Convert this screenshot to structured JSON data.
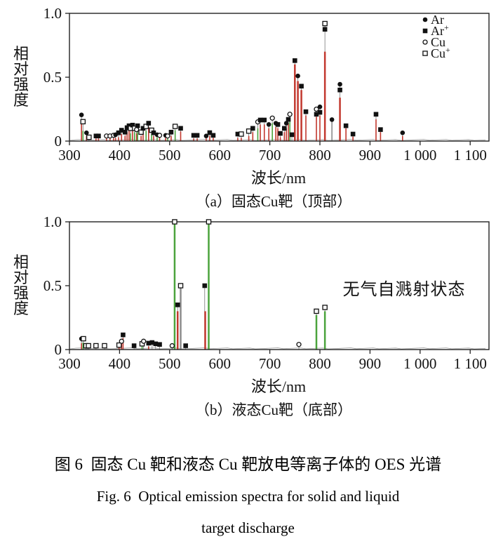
{
  "figure": {
    "caption_zh": "图 6  固态 Cu 靶和液态 Cu 靶放电等离子体的 OES 光谱",
    "caption_en_line1": "Fig. 6  Optical emission spectra for solid and liquid",
    "caption_en_line2": "target discharge"
  },
  "colors": {
    "red": "#c2382e",
    "green": "#4ba33c",
    "gray": "#8c8c8c",
    "axis": "#222222",
    "stem": "#777777",
    "noise": "#9a9a9a"
  },
  "chart_data": [
    {
      "id": "a",
      "type": "line",
      "title": "（a）固态Cu靶（顶部）",
      "xlabel": "波长/nm",
      "ylabel": "相对强度",
      "xlim": [
        300,
        1135
      ],
      "ylim": [
        0,
        1.0
      ],
      "x_ticks": [
        {
          "v": 300,
          "label": "300"
        },
        {
          "v": 400,
          "label": "400"
        },
        {
          "v": 500,
          "label": "500"
        },
        {
          "v": 600,
          "label": "600"
        },
        {
          "v": 700,
          "label": "700"
        },
        {
          "v": 800,
          "label": "800"
        },
        {
          "v": 900,
          "label": "900"
        },
        {
          "v": 1000,
          "label": "1 000"
        },
        {
          "v": 1100,
          "label": "1 100"
        }
      ],
      "y_ticks": [
        {
          "v": 0,
          "label": "0"
        },
        {
          "v": 0.5,
          "label": "0.5"
        },
        {
          "v": 1.0,
          "label": "1.0"
        }
      ],
      "legend": [
        {
          "label": "Ar",
          "sup": "",
          "marker": "filled-circle"
        },
        {
          "label": "Ar",
          "sup": "+",
          "marker": "filled-square"
        },
        {
          "label": "Cu",
          "sup": "",
          "marker": "open-circle"
        },
        {
          "label": "Cu",
          "sup": "+",
          "marker": "open-square"
        }
      ],
      "annotation": "",
      "markers": [
        [
          324,
          0.205,
          "Ar"
        ],
        [
          327,
          0.152,
          "Cu+"
        ],
        [
          334,
          0.065,
          "Ar"
        ],
        [
          339,
          0.03,
          "Cu+"
        ],
        [
          353,
          0.04,
          "Ar+"
        ],
        [
          358,
          0.04,
          "Ar+"
        ],
        [
          374,
          0.04,
          "Cu"
        ],
        [
          381,
          0.04,
          "Cu"
        ],
        [
          388,
          0.045,
          "Cu"
        ],
        [
          392,
          0.05,
          "Ar"
        ],
        [
          398,
          0.065,
          "Ar+"
        ],
        [
          404,
          0.085,
          "Ar+"
        ],
        [
          411,
          0.07,
          "Ar+"
        ],
        [
          415,
          0.105,
          "Ar+"
        ],
        [
          419,
          0.12,
          "Ar+"
        ],
        [
          422,
          0.1,
          "Cu+"
        ],
        [
          426,
          0.125,
          "Ar+"
        ],
        [
          430,
          0.1,
          "Cu+"
        ],
        [
          434,
          0.09,
          "Cu"
        ],
        [
          436,
          0.12,
          "Ar+"
        ],
        [
          443,
          0.07,
          "Cu+"
        ],
        [
          447,
          0.1,
          "Ar+"
        ],
        [
          453,
          0.115,
          "Cu+"
        ],
        [
          458,
          0.14,
          "Ar+"
        ],
        [
          464,
          0.085,
          "Cu+"
        ],
        [
          468,
          0.065,
          "Ar+"
        ],
        [
          475,
          0.05,
          "Ar"
        ],
        [
          480,
          0.045,
          "Cu"
        ],
        [
          492,
          0.045,
          "Ar"
        ],
        [
          496,
          0.04,
          "Cu"
        ],
        [
          503,
          0.07,
          "Ar+"
        ],
        [
          511,
          0.115,
          "Cu+"
        ],
        [
          522,
          0.1,
          "Ar+"
        ],
        [
          548,
          0.045,
          "Ar+"
        ],
        [
          555,
          0.045,
          "Ar+"
        ],
        [
          573,
          0.04,
          "Ar"
        ],
        [
          580,
          0.066,
          "Ar+"
        ],
        [
          587,
          0.045,
          "Ar+"
        ],
        [
          636,
          0.055,
          "Ar+"
        ],
        [
          643,
          0.055,
          "Cu+"
        ],
        [
          658,
          0.078,
          "Cu+"
        ],
        [
          666,
          0.1,
          "Ar+"
        ],
        [
          676,
          0.15,
          "Cu"
        ],
        [
          681,
          0.165,
          "Ar+"
        ],
        [
          689,
          0.165,
          "Ar+"
        ],
        [
          698,
          0.13,
          "Ar"
        ],
        [
          705,
          0.18,
          "Cu"
        ],
        [
          712,
          0.14,
          "Ar"
        ],
        [
          716,
          0.13,
          "Ar+"
        ],
        [
          721,
          0.06,
          "Ar+"
        ],
        [
          729,
          0.1,
          "Ar+"
        ],
        [
          733,
          0.14,
          "Ar"
        ],
        [
          737,
          0.17,
          "Ar+"
        ],
        [
          740,
          0.21,
          "Cu"
        ],
        [
          744,
          0.05,
          "Ar+"
        ],
        [
          750,
          0.63,
          "Ar+"
        ],
        [
          756,
          0.51,
          "Ar"
        ],
        [
          763,
          0.43,
          "Ar+"
        ],
        [
          772,
          0.23,
          "Ar+"
        ],
        [
          793,
          0.25,
          "Cu"
        ],
        [
          793,
          0.21,
          "Ar+"
        ],
        [
          800,
          0.268,
          "Ar"
        ],
        [
          800,
          0.225,
          "Ar+"
        ],
        [
          810,
          0.92,
          "Cu+"
        ],
        [
          810,
          0.875,
          "Ar+"
        ],
        [
          824,
          0.168,
          "Ar"
        ],
        [
          840,
          0.445,
          "Ar"
        ],
        [
          840,
          0.4,
          "Ar+"
        ],
        [
          852,
          0.12,
          "Ar+"
        ],
        [
          866,
          0.055,
          "Ar+"
        ],
        [
          912,
          0.21,
          "Ar+"
        ],
        [
          921,
          0.09,
          "Ar+"
        ],
        [
          965,
          0.065,
          "Ar"
        ]
      ],
      "peaks": [
        [
          324,
          0.155,
          "red"
        ],
        [
          327,
          0.08,
          "green"
        ],
        [
          334,
          0.04,
          "red"
        ],
        [
          353,
          0.02,
          "red"
        ],
        [
          358,
          0.02,
          "red"
        ],
        [
          374,
          0.02,
          "red"
        ],
        [
          381,
          0.02,
          "red"
        ],
        [
          388,
          0.022,
          "red"
        ],
        [
          392,
          0.025,
          "red"
        ],
        [
          398,
          0.03,
          "red"
        ],
        [
          404,
          0.055,
          "red"
        ],
        [
          411,
          0.04,
          "red"
        ],
        [
          415,
          0.07,
          "red"
        ],
        [
          419,
          0.09,
          "red"
        ],
        [
          422,
          0.06,
          "green"
        ],
        [
          426,
          0.1,
          "red"
        ],
        [
          430,
          0.07,
          "green"
        ],
        [
          434,
          0.06,
          "red"
        ],
        [
          436,
          0.09,
          "green"
        ],
        [
          443,
          0.04,
          "red"
        ],
        [
          447,
          0.07,
          "red"
        ],
        [
          453,
          0.08,
          "green"
        ],
        [
          458,
          0.11,
          "red"
        ],
        [
          464,
          0.055,
          "green"
        ],
        [
          468,
          0.04,
          "red"
        ],
        [
          475,
          0.03,
          "green"
        ],
        [
          480,
          0.025,
          "red"
        ],
        [
          492,
          0.025,
          "red"
        ],
        [
          496,
          0.02,
          "green"
        ],
        [
          503,
          0.04,
          "red"
        ],
        [
          511,
          0.085,
          "green"
        ],
        [
          522,
          0.075,
          "red"
        ],
        [
          548,
          0.02,
          "red"
        ],
        [
          555,
          0.02,
          "red"
        ],
        [
          573,
          0.02,
          "red"
        ],
        [
          580,
          0.04,
          "red"
        ],
        [
          587,
          0.025,
          "red"
        ],
        [
          636,
          0.025,
          "red"
        ],
        [
          643,
          0.025,
          "red"
        ],
        [
          658,
          0.04,
          "red"
        ],
        [
          666,
          0.07,
          "red"
        ],
        [
          676,
          0.1,
          "green"
        ],
        [
          681,
          0.13,
          "red"
        ],
        [
          689,
          0.13,
          "red"
        ],
        [
          698,
          0.1,
          "red"
        ],
        [
          705,
          0.14,
          "green"
        ],
        [
          712,
          0.11,
          "red"
        ],
        [
          716,
          0.1,
          "red"
        ],
        [
          721,
          0.03,
          "red"
        ],
        [
          729,
          0.07,
          "red"
        ],
        [
          733,
          0.1,
          "red"
        ],
        [
          737,
          0.14,
          "red"
        ],
        [
          740,
          0.17,
          "green"
        ],
        [
          750,
          0.6,
          "red"
        ],
        [
          756,
          0.47,
          "red"
        ],
        [
          763,
          0.4,
          "red"
        ],
        [
          772,
          0.2,
          "red"
        ],
        [
          793,
          0.19,
          "red"
        ],
        [
          800,
          0.2,
          "red"
        ],
        [
          810,
          0.7,
          "red"
        ],
        [
          824,
          0.15,
          "gray"
        ],
        [
          840,
          0.34,
          "red"
        ],
        [
          852,
          0.1,
          "red"
        ],
        [
          866,
          0.035,
          "red"
        ],
        [
          912,
          0.17,
          "red"
        ],
        [
          921,
          0.07,
          "red"
        ],
        [
          965,
          0.04,
          "red"
        ]
      ]
    },
    {
      "id": "b",
      "type": "line",
      "title": "（b）液态Cu靶（底部）",
      "xlabel": "波长/nm",
      "ylabel": "相对强度",
      "xlim": [
        300,
        1135
      ],
      "ylim": [
        0,
        1.0
      ],
      "x_ticks": [
        {
          "v": 300,
          "label": "300"
        },
        {
          "v": 400,
          "label": "400"
        },
        {
          "v": 500,
          "label": "500"
        },
        {
          "v": 600,
          "label": "600"
        },
        {
          "v": 700,
          "label": "700"
        },
        {
          "v": 800,
          "label": "800"
        },
        {
          "v": 900,
          "label": "900"
        },
        {
          "v": 1000,
          "label": "1 000"
        },
        {
          "v": 1100,
          "label": "1 100"
        }
      ],
      "y_ticks": [
        {
          "v": 0,
          "label": "0"
        },
        {
          "v": 0.5,
          "label": "0.5"
        },
        {
          "v": 1.0,
          "label": "1.0"
        }
      ],
      "legend": [],
      "annotation": "无气自溅射状态",
      "markers": [
        [
          324,
          0.085,
          "Ar"
        ],
        [
          328,
          0.085,
          "Cu+"
        ],
        [
          333,
          0.03,
          "Cu+"
        ],
        [
          338,
          0.03,
          "Cu+"
        ],
        [
          353,
          0.03,
          "Cu+"
        ],
        [
          370,
          0.03,
          "Cu+"
        ],
        [
          399,
          0.035,
          "Cu+"
        ],
        [
          404,
          0.065,
          "Cu"
        ],
        [
          407,
          0.115,
          "Ar+"
        ],
        [
          429,
          0.03,
          "Ar+"
        ],
        [
          445,
          0.045,
          "Cu+"
        ],
        [
          448,
          0.065,
          "Cu"
        ],
        [
          458,
          0.05,
          "Ar+"
        ],
        [
          465,
          0.055,
          "Ar+"
        ],
        [
          472,
          0.045,
          "Ar+"
        ],
        [
          480,
          0.04,
          "Ar+"
        ],
        [
          505,
          0.03,
          "Cu"
        ],
        [
          510,
          1.0,
          "Cu+"
        ],
        [
          516,
          0.35,
          "Ar+"
        ],
        [
          522,
          0.5,
          "Cu+"
        ],
        [
          532,
          0.03,
          "Ar+"
        ],
        [
          570,
          0.5,
          "Ar+"
        ],
        [
          578,
          1.0,
          "Cu+"
        ],
        [
          758,
          0.04,
          "Cu"
        ],
        [
          793,
          0.3,
          "Cu+"
        ],
        [
          810,
          0.33,
          "Cu+"
        ]
      ],
      "peaks": [
        [
          324,
          0.05,
          "red"
        ],
        [
          327,
          0.055,
          "green"
        ],
        [
          399,
          0.02,
          "red"
        ],
        [
          404,
          0.045,
          "red"
        ],
        [
          407,
          0.09,
          "red"
        ],
        [
          445,
          0.025,
          "green"
        ],
        [
          458,
          0.025,
          "red"
        ],
        [
          510,
          0.995,
          "green"
        ],
        [
          516,
          0.3,
          "red"
        ],
        [
          522,
          0.48,
          "gray"
        ],
        [
          571,
          0.3,
          "red"
        ],
        [
          578,
          0.995,
          "green"
        ],
        [
          793,
          0.27,
          "green"
        ],
        [
          810,
          0.3,
          "green"
        ]
      ]
    }
  ]
}
